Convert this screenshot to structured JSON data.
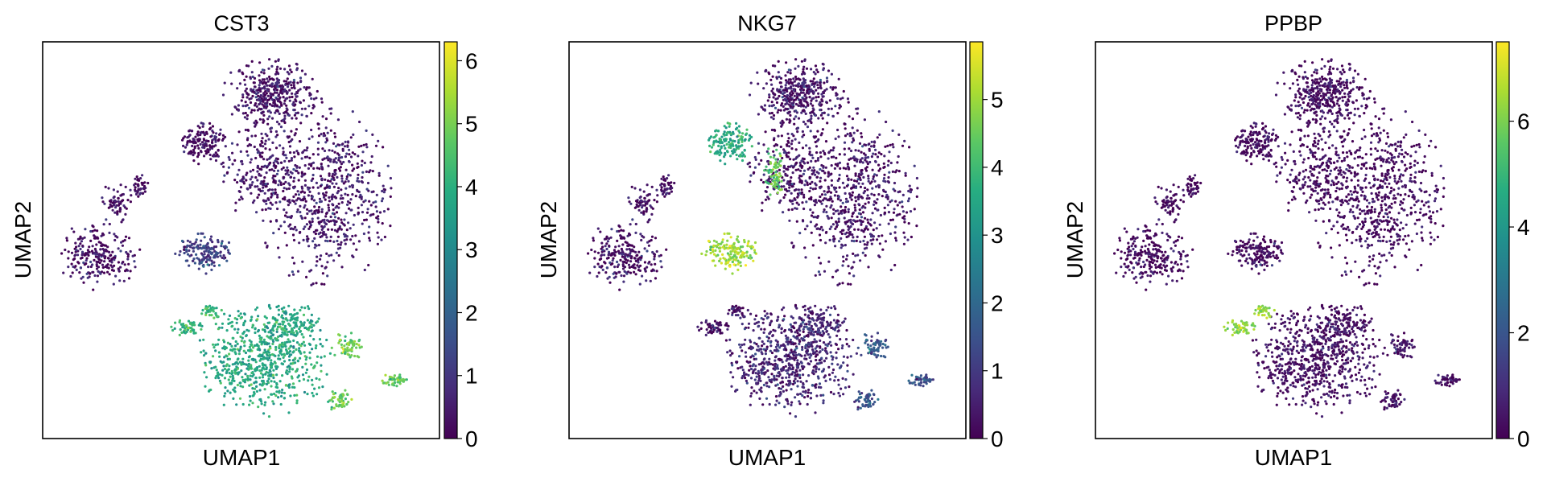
{
  "chart_data": [
    {
      "type": "scatter",
      "title": "CST3",
      "xlabel": "UMAP1",
      "ylabel": "UMAP2",
      "colormap": "viridis",
      "colorbar": {
        "min": 0,
        "max": 6.3,
        "ticks": [
          0,
          1,
          2,
          3,
          4,
          5,
          6
        ],
        "tick_labels": [
          "0",
          "1",
          "2",
          "3",
          "4",
          "5",
          "6"
        ]
      },
      "clusters": [
        {
          "region": "top-center large cluster",
          "expression": 0.3
        },
        {
          "region": "right large cluster",
          "expression": 0.4
        },
        {
          "region": "upper-left small round cluster",
          "expression": 0.2
        },
        {
          "region": "left cluster",
          "expression": 0.3
        },
        {
          "region": "middle-left small cluster",
          "expression": 1.2
        },
        {
          "region": "bottom large cluster",
          "expression": 3.8
        },
        {
          "region": "bottom-right arm",
          "expression": 4.8
        },
        {
          "region": "bottom-left arc",
          "expression": 4.2
        }
      ]
    },
    {
      "type": "scatter",
      "title": "NKG7",
      "xlabel": "UMAP1",
      "ylabel": "UMAP2",
      "colormap": "viridis",
      "colorbar": {
        "min": 0,
        "max": 5.85,
        "ticks": [
          0,
          1,
          2,
          3,
          4,
          5
        ],
        "tick_labels": [
          "0",
          "1",
          "2",
          "3",
          "4",
          "5"
        ]
      },
      "clusters": [
        {
          "region": "top-center large cluster",
          "expression": 0.3
        },
        {
          "region": "right large cluster",
          "expression": 0.3
        },
        {
          "region": "upper-left small round cluster",
          "expression": 3.6
        },
        {
          "region": "left cluster",
          "expression": 0.3
        },
        {
          "region": "middle-left small cluster",
          "expression": 5.0
        },
        {
          "region": "bottom large cluster",
          "expression": 0.6
        },
        {
          "region": "bottom-right arm",
          "expression": 1.5
        },
        {
          "region": "bridge strand",
          "expression": 4.4
        }
      ]
    },
    {
      "type": "scatter",
      "title": "PPBP",
      "xlabel": "UMAP1",
      "ylabel": "UMAP2",
      "colormap": "viridis",
      "colorbar": {
        "min": 0,
        "max": 7.5,
        "ticks": [
          0,
          2,
          4,
          6
        ],
        "tick_labels": [
          "0",
          "2",
          "4",
          "6"
        ]
      },
      "clusters": [
        {
          "region": "top-center large cluster",
          "expression": 0.2
        },
        {
          "region": "right large cluster",
          "expression": 0.2
        },
        {
          "region": "upper-left small round cluster",
          "expression": 0.2
        },
        {
          "region": "left cluster",
          "expression": 0.2
        },
        {
          "region": "middle-left small cluster",
          "expression": 0.2
        },
        {
          "region": "bottom large cluster",
          "expression": 0.3
        },
        {
          "region": "bottom-left arc",
          "expression": 6.3
        }
      ]
    }
  ]
}
